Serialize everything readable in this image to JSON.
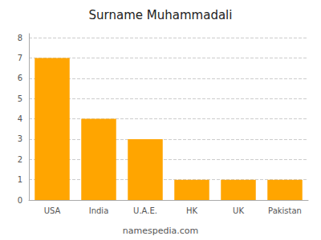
{
  "chart_data": {
    "type": "bar",
    "title": "Surname Muhammadali",
    "categories": [
      "USA",
      "India",
      "U.A.E.",
      "HK",
      "UK",
      "Pakistan"
    ],
    "values": [
      7,
      4,
      3,
      1,
      1,
      1
    ],
    "color": "#FFA500",
    "ylim": [
      0,
      8.2
    ],
    "yticks": [
      0,
      1,
      2,
      3,
      4,
      5,
      6,
      7,
      8
    ],
    "grid": true,
    "annotations": [
      "namespedia.com"
    ]
  }
}
